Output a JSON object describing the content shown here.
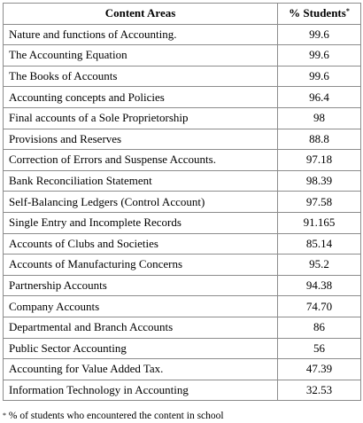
{
  "table": {
    "headers": {
      "content_areas": "Content Areas",
      "percent_students": "% Students",
      "percent_marker": "*"
    },
    "rows": [
      {
        "area": "Nature and functions of Accounting.",
        "percent": "99.6"
      },
      {
        "area": "The Accounting Equation",
        "percent": "99.6"
      },
      {
        "area": "The Books of Accounts",
        "percent": "99.6"
      },
      {
        "area": "Accounting concepts and Policies",
        "percent": "96.4"
      },
      {
        "area": "Final accounts of a Sole Proprietorship",
        "percent": "98"
      },
      {
        "area": "Provisions and Reserves",
        "percent": "88.8"
      },
      {
        "area": "Correction of Errors and Suspense Accounts.",
        "percent": "97.18"
      },
      {
        "area": "Bank Reconciliation Statement",
        "percent": "98.39"
      },
      {
        "area": "Self-Balancing Ledgers (Control Account)",
        "percent": "97.58"
      },
      {
        "area": "Single Entry and Incomplete Records",
        "percent": "91.165"
      },
      {
        "area": "Accounts of Clubs and Societies",
        "percent": "85.14"
      },
      {
        "area": "Accounts of Manufacturing Concerns",
        "percent": "95.2"
      },
      {
        "area": "Partnership Accounts",
        "percent": "94.38"
      },
      {
        "area": "Company Accounts",
        "percent": "74.70"
      },
      {
        "area": "Departmental and Branch Accounts",
        "percent": "86"
      },
      {
        "area": "Public Sector Accounting",
        "percent": "56"
      },
      {
        "area": "Accounting for Value Added Tax.",
        "percent": "47.39"
      },
      {
        "area": "Information Technology in Accounting",
        "percent": "32.53"
      }
    ]
  },
  "footnote": {
    "marker": "*",
    "text": " % of students who encountered the content in school"
  }
}
